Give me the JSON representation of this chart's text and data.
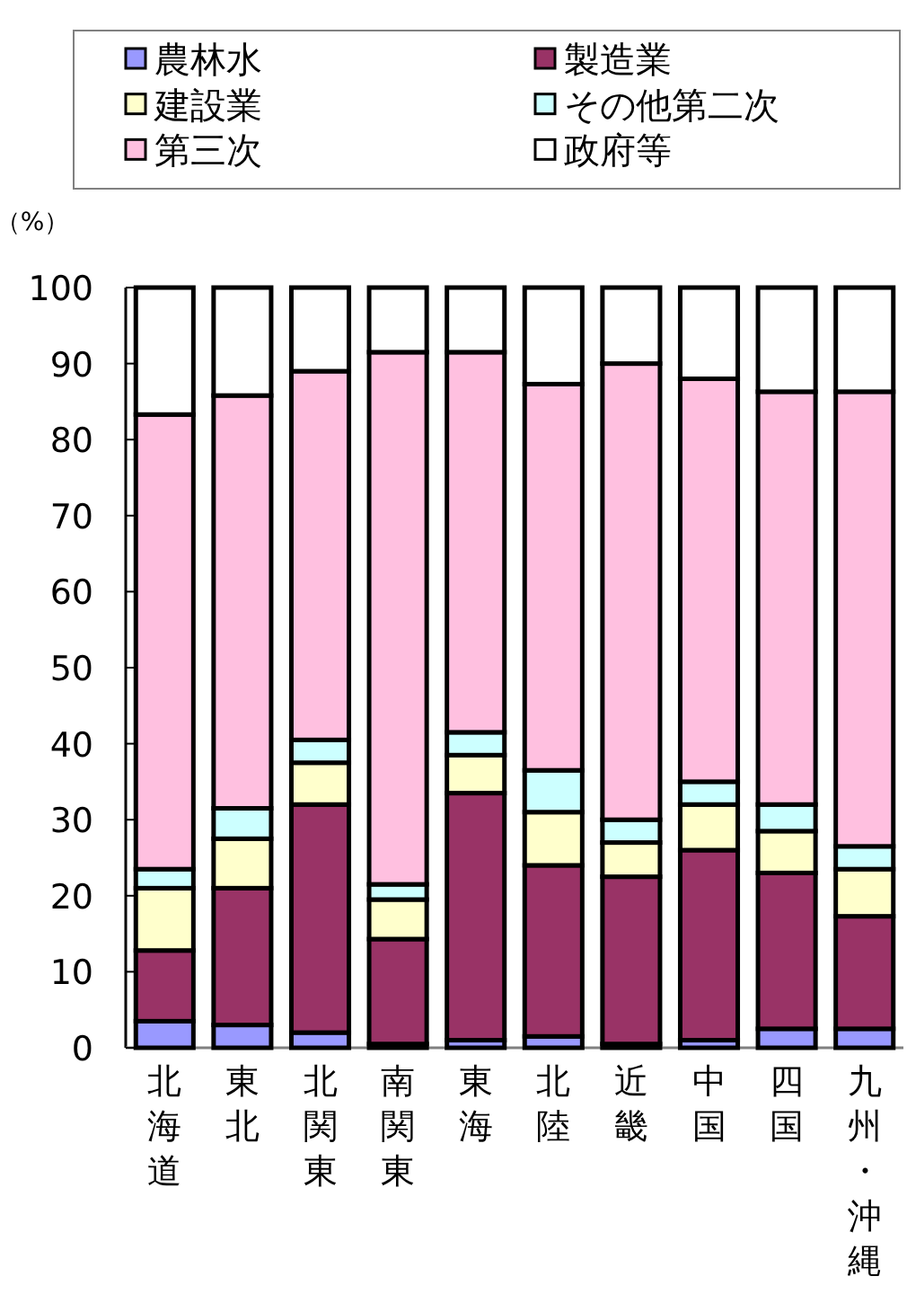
{
  "chart_data": {
    "type": "bar",
    "stacked": true,
    "ylabel": "（%）",
    "categories": [
      "北海道",
      "東北",
      "北関東",
      "南関東",
      "東海",
      "北陸",
      "近畿",
      "中国",
      "四国",
      "九州・沖縄"
    ],
    "series": [
      {
        "name": "農林水",
        "color": "#9999ff",
        "values": [
          3.5,
          3,
          2,
          0.5,
          1,
          1.5,
          0.5,
          1,
          2.5,
          2.5
        ]
      },
      {
        "name": "製造業",
        "color": "#993366",
        "values": [
          9.3,
          18,
          30,
          13.8,
          32.5,
          22.5,
          22,
          25,
          20.5,
          14.8
        ]
      },
      {
        "name": "建設業",
        "color": "#ffffcc",
        "values": [
          8.2,
          6.5,
          5.5,
          5.2,
          5,
          7,
          4.5,
          6,
          5.5,
          6.2
        ]
      },
      {
        "name": "その他第二次",
        "color": "#ccffff",
        "values": [
          2.5,
          4,
          3,
          2,
          3,
          5.5,
          3,
          3,
          3.5,
          3
        ]
      },
      {
        "name": "第三次",
        "color": "#ffc0e0",
        "values": [
          59.8,
          54.3,
          48.5,
          70,
          50,
          50.8,
          60,
          53,
          54.3,
          59.8
        ]
      },
      {
        "name": "政府等",
        "color": "#ffffff",
        "values": [
          16.7,
          14.2,
          11,
          8.5,
          8.5,
          12.7,
          10,
          12,
          13.7,
          13.7
        ]
      }
    ],
    "ylim": [
      0,
      100
    ],
    "yticks": [
      0,
      10,
      20,
      30,
      40,
      50,
      60,
      70,
      80,
      90,
      100
    ],
    "legend": "top"
  }
}
